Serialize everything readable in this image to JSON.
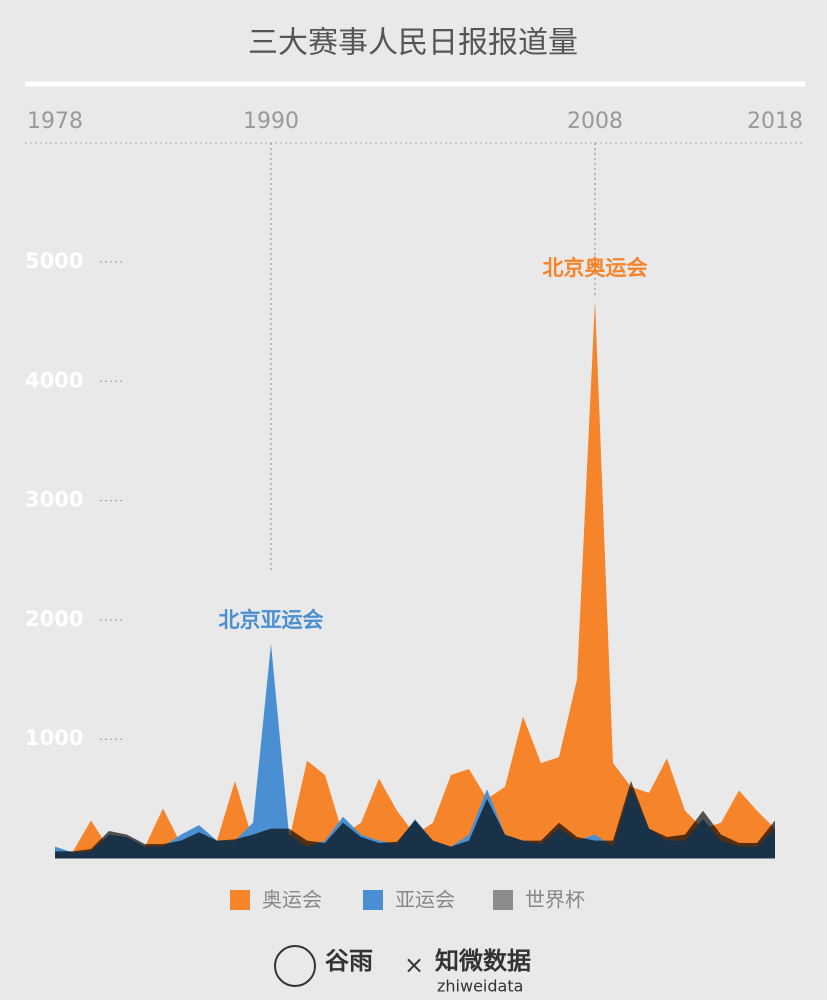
{
  "chart_data": {
    "type": "area",
    "title": "三大赛事人民日报报道量",
    "x": [
      1978,
      1979,
      1980,
      1981,
      1982,
      1983,
      1984,
      1985,
      1986,
      1987,
      1988,
      1989,
      1990,
      1991,
      1992,
      1993,
      1994,
      1995,
      1996,
      1997,
      1998,
      1999,
      2000,
      2001,
      2002,
      2003,
      2004,
      2005,
      2006,
      2007,
      2008,
      2009,
      2010,
      2011,
      2012,
      2013,
      2014,
      2015,
      2016,
      2017,
      2018
    ],
    "series": [
      {
        "name": "奥运会",
        "color": "#f5842b",
        "values": [
          50,
          60,
          320,
          80,
          80,
          100,
          420,
          120,
          120,
          150,
          650,
          150,
          200,
          150,
          820,
          700,
          200,
          300,
          670,
          400,
          200,
          300,
          700,
          750,
          500,
          600,
          1190,
          800,
          850,
          1500,
          4680,
          800,
          600,
          550,
          840,
          400,
          250,
          300,
          570,
          400,
          250
        ]
      },
      {
        "name": "亚运会",
        "color": "#4a8fd1",
        "values": [
          100,
          50,
          60,
          200,
          180,
          100,
          100,
          200,
          280,
          150,
          150,
          300,
          1800,
          200,
          100,
          150,
          350,
          200,
          150,
          120,
          330,
          150,
          100,
          200,
          580,
          200,
          150,
          120,
          250,
          150,
          200,
          100,
          600,
          250,
          150,
          150,
          330,
          150,
          100,
          100,
          250
        ]
      },
      {
        "name": "世界杯",
        "color": "#8c8c8c",
        "values": [
          60,
          60,
          80,
          230,
          200,
          120,
          120,
          150,
          220,
          150,
          160,
          200,
          250,
          250,
          150,
          130,
          300,
          180,
          130,
          140,
          320,
          150,
          100,
          150,
          500,
          200,
          150,
          150,
          300,
          180,
          150,
          150,
          650,
          250,
          180,
          200,
          400,
          200,
          130,
          130,
          320
        ]
      }
    ],
    "xlim": [
      1978,
      2018
    ],
    "xticks": [
      1978,
      1990,
      2008,
      2018
    ],
    "ylim": [
      0,
      5000
    ],
    "yticks": [
      1000,
      2000,
      3000,
      4000,
      5000
    ],
    "annotations": [
      {
        "text": "北京亚运会",
        "x": 1990,
        "y": 1990,
        "series": 1
      },
      {
        "text": "北京奥运会",
        "x": 2008,
        "y": 4940,
        "series": 0
      }
    ],
    "footer": [
      "谷雨",
      "×",
      "知微数据",
      "zhiweidata"
    ]
  }
}
